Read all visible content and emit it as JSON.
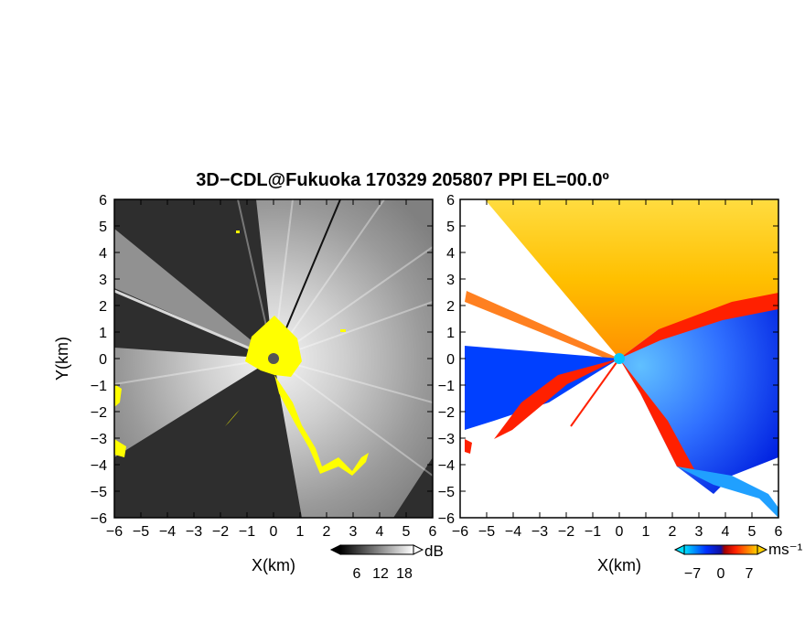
{
  "title": "3D−CDL@Fukuoka 170329 205807 PPI EL=00.0º",
  "chart_data": [
    {
      "type": "heatmap",
      "panel": "reflectivity",
      "xlabel": "X(km)",
      "ylabel": "Y(km)",
      "xlim": [
        -6,
        6
      ],
      "ylim": [
        -6,
        6
      ],
      "x_ticks": [
        "−6",
        "−5",
        "−4",
        "−3",
        "−2",
        "−1",
        "0",
        "1",
        "2",
        "3",
        "4",
        "5",
        "6"
      ],
      "y_ticks": [
        "6",
        "5",
        "4",
        "3",
        "2",
        "1",
        "0",
        "−1",
        "−2",
        "−3",
        "−4",
        "−5",
        "−6"
      ],
      "colorbar": {
        "unit": "dB",
        "ticks": [
          "6",
          "12",
          "18"
        ],
        "colors": [
          "#000000",
          "#ffffff"
        ]
      },
      "colors": {
        "strong": "#ffff00"
      }
    },
    {
      "type": "heatmap",
      "panel": "doppler-velocity",
      "xlabel": "X(km)",
      "xlim": [
        -6,
        6
      ],
      "ylim": [
        -6,
        6
      ],
      "x_ticks": [
        "−6",
        "−5",
        "−4",
        "−3",
        "−2",
        "−1",
        "0",
        "1",
        "2",
        "3",
        "4",
        "5",
        "6"
      ],
      "y_ticks": [
        "6",
        "5",
        "4",
        "3",
        "2",
        "1",
        "0",
        "−1",
        "−2",
        "−3",
        "−4",
        "−5",
        "−6"
      ],
      "colorbar": {
        "unit": "ms⁻¹",
        "ticks": [
          "−7",
          "0",
          "7"
        ],
        "colors": [
          "#00e0ff",
          "#0030ff",
          "#ff2000",
          "#ffd000"
        ]
      }
    }
  ]
}
